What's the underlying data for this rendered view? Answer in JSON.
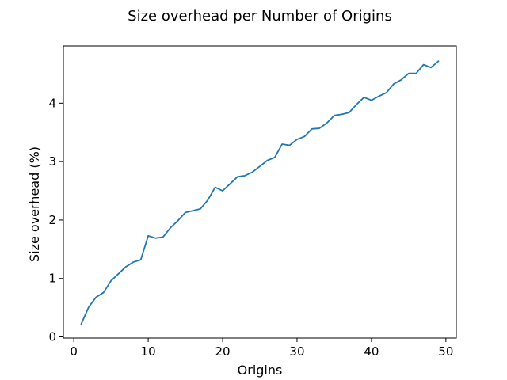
{
  "chart_data": {
    "type": "line",
    "title": "Size overhead per Number of Origins",
    "xlabel": "Origins",
    "ylabel": "Size overhead (%)",
    "xlim": [
      -1.4,
      51.4
    ],
    "ylim": [
      -0.02,
      4.98
    ],
    "xticks": [
      0,
      10,
      20,
      30,
      40,
      50
    ],
    "yticks": [
      0,
      1,
      2,
      3,
      4
    ],
    "grid": false,
    "series": [
      {
        "color": "#1f77b4",
        "x": [
          1,
          2,
          3,
          4,
          5,
          6,
          7,
          8,
          9,
          10,
          11,
          12,
          13,
          14,
          15,
          16,
          17,
          18,
          19,
          20,
          21,
          22,
          23,
          24,
          25,
          26,
          27,
          28,
          29,
          30,
          31,
          32,
          33,
          34,
          35,
          36,
          37,
          38,
          39,
          40,
          41,
          42,
          43,
          44,
          45,
          46,
          47,
          48,
          49
        ],
        "y": [
          0.22,
          0.51,
          0.68,
          0.76,
          0.96,
          1.08,
          1.2,
          1.28,
          1.32,
          1.73,
          1.69,
          1.71,
          1.87,
          1.99,
          2.13,
          2.16,
          2.19,
          2.34,
          2.56,
          2.5,
          2.62,
          2.74,
          2.76,
          2.82,
          2.92,
          3.02,
          3.07,
          3.3,
          3.28,
          3.38,
          3.43,
          3.56,
          3.57,
          3.66,
          3.79,
          3.81,
          3.84,
          3.98,
          4.1,
          4.05,
          4.12,
          4.18,
          4.33,
          4.4,
          4.51,
          4.51,
          4.66,
          4.61,
          4.72
        ]
      }
    ]
  }
}
